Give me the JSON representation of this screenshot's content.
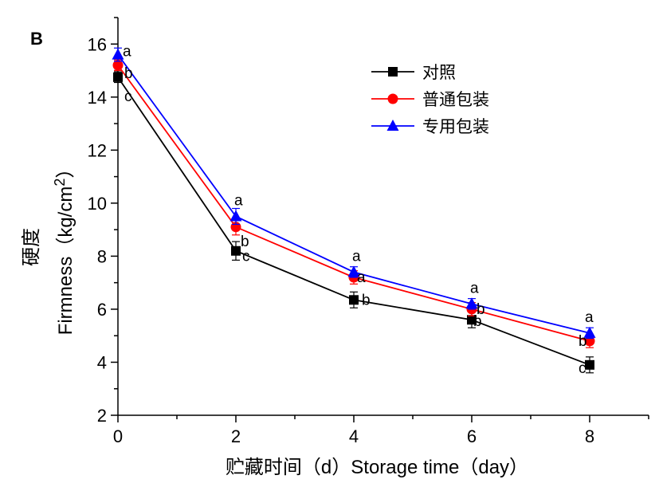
{
  "panel_label": "B",
  "chart_data": {
    "type": "line",
    "xlabel": "贮藏时间（d）Storage time（day）",
    "ylabel_cn": "硬度",
    "ylabel": "Firmness（kg/cm",
    "ylabel_sup": "2",
    "ylabel_end": "）",
    "xlim": [
      0,
      9
    ],
    "ylim": [
      2,
      17
    ],
    "x_ticks": [
      0,
      2,
      4,
      6,
      8
    ],
    "y_ticks": [
      2,
      4,
      6,
      8,
      10,
      12,
      14,
      16
    ],
    "x": [
      0,
      2,
      4,
      6,
      8
    ],
    "grid": false,
    "legend_position": "top-right",
    "series": [
      {
        "name": "对照",
        "color": "#000000",
        "marker": "square",
        "values": [
          14.75,
          8.2,
          6.35,
          5.6,
          3.9
        ],
        "errors": [
          0.2,
          0.35,
          0.3,
          0.3,
          0.3
        ],
        "sig": [
          "c",
          "c",
          "b",
          "b",
          "c"
        ]
      },
      {
        "name": "普通包装",
        "color": "#ff0000",
        "marker": "circle",
        "values": [
          15.2,
          9.1,
          7.2,
          6.0,
          4.8
        ],
        "errors": [
          0.2,
          0.3,
          0.25,
          0.25,
          0.25
        ],
        "sig": [
          "b",
          "b",
          "a",
          "b",
          "b"
        ]
      },
      {
        "name": "专用包装",
        "color": "#0000ff",
        "marker": "triangle",
        "values": [
          15.6,
          9.5,
          7.4,
          6.2,
          5.1
        ],
        "errors": [
          0.25,
          0.3,
          0.2,
          0.2,
          0.2
        ],
        "sig": [
          "a",
          "a",
          "a",
          "a",
          "a"
        ]
      }
    ]
  }
}
